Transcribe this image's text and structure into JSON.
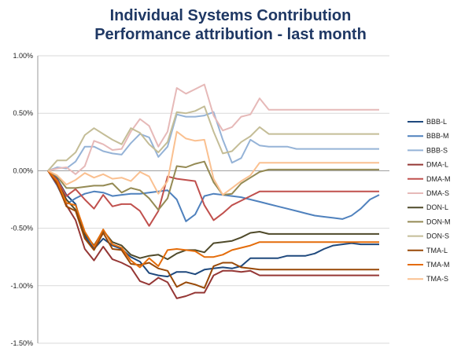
{
  "chart_data": {
    "type": "line",
    "title": "Individual Systems Contribution",
    "subtitle": "Performance attribution - last month",
    "xlabel": "",
    "ylabel": "",
    "ylim": [
      -0.015,
      0.01
    ],
    "yticks": [
      0.01,
      0.005,
      0,
      -0.005,
      -0.01,
      -0.015
    ],
    "ytick_labels": [
      "1.00%",
      "0.50%",
      "0.00%",
      "-0.50%",
      "-1.00%",
      "-1.50%"
    ],
    "grid": true,
    "legend_position": "right",
    "x": [
      0,
      1,
      2,
      3,
      4,
      5,
      6,
      7,
      8,
      9,
      10,
      11,
      12,
      13,
      14,
      15,
      16,
      17,
      18,
      19,
      20,
      21,
      22,
      23,
      24,
      25,
      26,
      27,
      28,
      29,
      30,
      31,
      32,
      33,
      34,
      35,
      36
    ],
    "series": [
      {
        "name": "BBB-L",
        "color": "#1f497d",
        "values": [
          0,
          -0.0007,
          -0.0021,
          -0.0029,
          -0.0057,
          -0.0068,
          -0.0059,
          -0.0065,
          -0.0068,
          -0.0075,
          -0.0079,
          -0.0089,
          -0.0091,
          -0.0092,
          -0.0088,
          -0.0088,
          -0.009,
          -0.0086,
          -0.0085,
          -0.0084,
          -0.0085,
          -0.0083,
          -0.0076,
          -0.0076,
          -0.0076,
          -0.0076,
          -0.0074,
          -0.0074,
          -0.0074,
          -0.0072,
          -0.0068,
          -0.0065,
          -0.0064,
          -0.0063,
          -0.0064,
          -0.0064,
          -0.0064
        ]
      },
      {
        "name": "BBB-M",
        "color": "#4f81bd",
        "values": [
          0,
          -0.0013,
          -0.0029,
          -0.0024,
          -0.002,
          -0.0018,
          -0.0019,
          -0.0022,
          -0.0021,
          -0.002,
          -0.002,
          -0.0019,
          -0.0018,
          -0.0017,
          -0.0025,
          -0.0044,
          -0.0038,
          -0.0022,
          -0.002,
          -0.0021,
          -0.0022,
          -0.0023,
          -0.0025,
          -0.0027,
          -0.0029,
          -0.0031,
          -0.0033,
          -0.0035,
          -0.0037,
          -0.0039,
          -0.004,
          -0.0041,
          -0.0042,
          -0.0039,
          -0.0033,
          -0.0025,
          -0.0021
        ]
      },
      {
        "name": "BBB-S",
        "color": "#95b3d7",
        "values": [
          0,
          0.0003,
          0.0002,
          0.0008,
          0.0021,
          0.0021,
          0.0017,
          0.0015,
          0.0014,
          0.0024,
          0.0032,
          0.0029,
          0.0012,
          0.0021,
          0.0049,
          0.0047,
          0.0047,
          0.0048,
          0.0051,
          0.0027,
          0.0007,
          0.0011,
          0.0027,
          0.0022,
          0.0021,
          0.0021,
          0.0021,
          0.0019,
          0.0019,
          0.0019,
          0.0019,
          0.0019,
          0.0019,
          0.0019,
          0.0019,
          0.0019,
          0.0019
        ]
      },
      {
        "name": "DMA-L",
        "color": "#953735",
        "values": [
          0,
          -0.0012,
          -0.003,
          -0.0043,
          -0.0068,
          -0.0078,
          -0.0066,
          -0.0077,
          -0.008,
          -0.0084,
          -0.0096,
          -0.0099,
          -0.0093,
          -0.0097,
          -0.0111,
          -0.0109,
          -0.0106,
          -0.0106,
          -0.0091,
          -0.0087,
          -0.0087,
          -0.0088,
          -0.0087,
          -0.0091,
          -0.0091,
          -0.0091,
          -0.0091,
          -0.0091,
          -0.0091,
          -0.0091,
          -0.0091,
          -0.0091,
          -0.0091,
          -0.0091,
          -0.0091,
          -0.0091,
          -0.0091
        ]
      },
      {
        "name": "DMA-M",
        "color": "#c0504d",
        "values": [
          0,
          -0.0008,
          -0.0022,
          -0.0016,
          -0.0025,
          -0.0033,
          -0.0021,
          -0.0031,
          -0.0029,
          -0.0029,
          -0.0035,
          -0.0048,
          -0.0035,
          -0.0005,
          -0.0007,
          -0.0008,
          -0.0009,
          -0.003,
          -0.0043,
          -0.0037,
          -0.003,
          -0.0026,
          -0.0022,
          -0.0018,
          -0.0018,
          -0.0018,
          -0.0018,
          -0.0018,
          -0.0018,
          -0.0018,
          -0.0018,
          -0.0018,
          -0.0018,
          -0.0018,
          -0.0018,
          -0.0018,
          -0.0018
        ]
      },
      {
        "name": "DMA-S",
        "color": "#e6b9b8",
        "values": [
          0,
          0.0002,
          0.0003,
          -0.0003,
          0.0004,
          0.0026,
          0.0023,
          0.0018,
          0.0019,
          0.0034,
          0.0045,
          0.0039,
          0.0021,
          0.0034,
          0.0072,
          0.0067,
          0.0071,
          0.0075,
          0.0048,
          0.0035,
          0.0038,
          0.0047,
          0.0049,
          0.0063,
          0.0053,
          0.0053,
          0.0053,
          0.0053,
          0.0053,
          0.0053,
          0.0053,
          0.0053,
          0.0053,
          0.0053,
          0.0053,
          0.0053,
          0.0053
        ]
      },
      {
        "name": "DON-L",
        "color": "#4f4a2a",
        "values": [
          0,
          -0.001,
          -0.0025,
          -0.0034,
          -0.0055,
          -0.0065,
          -0.0052,
          -0.0062,
          -0.0065,
          -0.0073,
          -0.0076,
          -0.0074,
          -0.0073,
          -0.0077,
          -0.0072,
          -0.0069,
          -0.0069,
          -0.0071,
          -0.0063,
          -0.0062,
          -0.0061,
          -0.0058,
          -0.0054,
          -0.0053,
          -0.0055,
          -0.0055,
          -0.0055,
          -0.0055,
          -0.0055,
          -0.0055,
          -0.0055,
          -0.0055,
          -0.0055,
          -0.0055,
          -0.0055,
          -0.0055,
          -0.0055
        ]
      },
      {
        "name": "DON-M",
        "color": "#948a54",
        "values": [
          0,
          -0.0005,
          -0.0015,
          -0.0015,
          -0.0014,
          -0.0013,
          -0.0013,
          -0.0011,
          -0.0019,
          -0.0015,
          -0.0017,
          -0.0024,
          -0.0034,
          -0.0024,
          0.0004,
          0.0003,
          0.0006,
          0.0008,
          -0.001,
          -0.0021,
          -0.002,
          -0.0011,
          -0.0006,
          -0.0001,
          0.0001,
          0.0001,
          0.0001,
          0.0001,
          0.0001,
          0.0001,
          0.0001,
          0.0001,
          0.0001,
          0.0001,
          0.0001,
          0.0001,
          0.0001
        ]
      },
      {
        "name": "DON-S",
        "color": "#c4bd97",
        "values": [
          0,
          0.0009,
          0.0009,
          0.0016,
          0.0031,
          0.0037,
          0.0032,
          0.0027,
          0.0023,
          0.0037,
          0.0033,
          0.0023,
          0.0016,
          0.0025,
          0.0051,
          0.005,
          0.0052,
          0.0056,
          0.0034,
          0.0015,
          0.0017,
          0.0025,
          0.003,
          0.0038,
          0.0032,
          0.0032,
          0.0032,
          0.0032,
          0.0032,
          0.0032,
          0.0032,
          0.0032,
          0.0032,
          0.0032,
          0.0032,
          0.0032,
          0.0032
        ]
      },
      {
        "name": "TMA-L",
        "color": "#984807",
        "values": [
          0,
          -0.0011,
          -0.0031,
          -0.0035,
          -0.0059,
          -0.0069,
          -0.0054,
          -0.0068,
          -0.0069,
          -0.0081,
          -0.0082,
          -0.008,
          -0.0085,
          -0.0087,
          -0.0101,
          -0.0097,
          -0.0099,
          -0.0102,
          -0.0083,
          -0.008,
          -0.008,
          -0.0084,
          -0.0085,
          -0.0086,
          -0.0086,
          -0.0086,
          -0.0086,
          -0.0086,
          -0.0086,
          -0.0086,
          -0.0086,
          -0.0086,
          -0.0086,
          -0.0086,
          -0.0086,
          -0.0086,
          -0.0086
        ]
      },
      {
        "name": "TMA-M",
        "color": "#e46c0a",
        "values": [
          0,
          -0.0009,
          -0.0028,
          -0.003,
          -0.0053,
          -0.0066,
          -0.0051,
          -0.0064,
          -0.0067,
          -0.0078,
          -0.0084,
          -0.0076,
          -0.0083,
          -0.0069,
          -0.0068,
          -0.0069,
          -0.007,
          -0.0075,
          -0.0075,
          -0.0073,
          -0.0069,
          -0.0067,
          -0.0065,
          -0.0062,
          -0.0062,
          -0.0062,
          -0.0062,
          -0.0062,
          -0.0062,
          -0.0062,
          -0.0062,
          -0.0062,
          -0.0062,
          -0.0062,
          -0.0062,
          -0.0062,
          -0.0062
        ]
      },
      {
        "name": "TMA-S",
        "color": "#fac090",
        "values": [
          0,
          -0.0004,
          -0.0012,
          -0.0008,
          -0.0002,
          -0.0006,
          -0.0003,
          -0.0007,
          -0.0006,
          -0.0009,
          -0.0001,
          -0.0005,
          -0.002,
          -0.0009,
          0.0034,
          0.0028,
          0.0026,
          0.0027,
          -0.0007,
          -0.0021,
          -0.0015,
          -0.0009,
          -0.0004,
          0.0007,
          0.0007,
          0.0007,
          0.0007,
          0.0007,
          0.0007,
          0.0007,
          0.0007,
          0.0007,
          0.0007,
          0.0007,
          0.0007,
          0.0007,
          0.0007
        ]
      }
    ]
  }
}
